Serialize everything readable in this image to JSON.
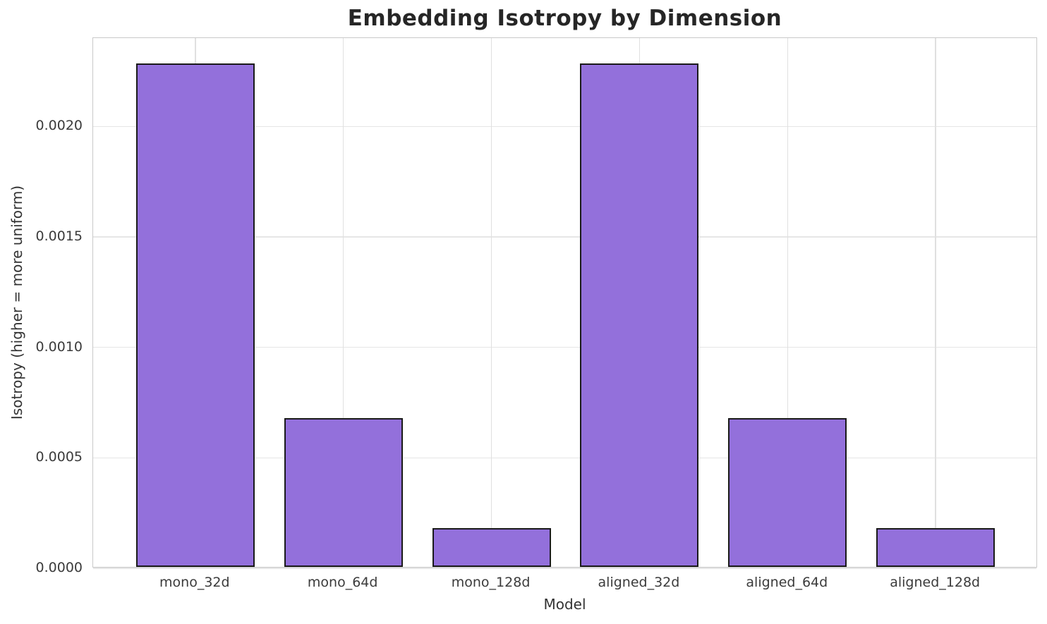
{
  "chart_data": {
    "type": "bar",
    "title": "Embedding Isotropy by Dimension",
    "xlabel": "Model",
    "ylabel": "Isotropy (higher = more uniform)",
    "categories": [
      "mono_32d",
      "mono_64d",
      "mono_128d",
      "aligned_32d",
      "aligned_64d",
      "aligned_128d"
    ],
    "values": [
      0.00228,
      0.000675,
      0.000175,
      0.00228,
      0.000675,
      0.000175
    ],
    "ylim": [
      0,
      0.0024
    ],
    "yticks": [
      0.0,
      0.0005,
      0.001,
      0.0015,
      0.002
    ],
    "ytick_labels": [
      "0.0000",
      "0.0005",
      "0.0010",
      "0.0015",
      "0.0020"
    ],
    "grid": true,
    "legend": "none",
    "bar_color": "#9370DB",
    "bar_edge_color": "#1a1a1a",
    "grid_color": "#e6e6e6",
    "spine_color": "#c9c9c9"
  }
}
